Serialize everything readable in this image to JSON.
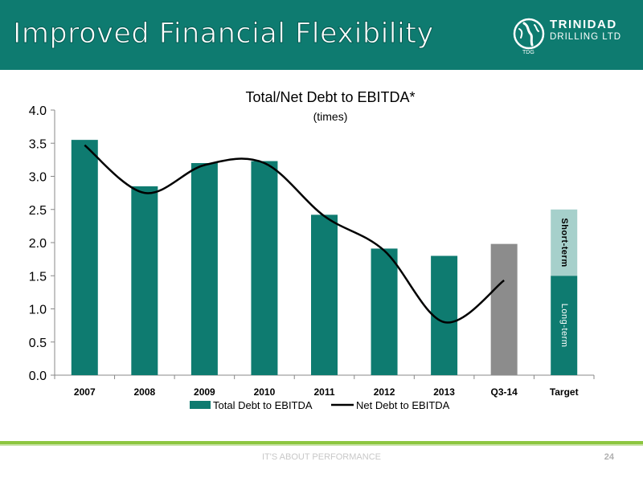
{
  "header": {
    "title": "Improved Financial Flexibility",
    "logo_line1": "TRINIDAD",
    "logo_line2": "DRILLING LTD",
    "logo_mark": "TDG"
  },
  "chart_data": {
    "type": "bar",
    "title": "Total/Net Debt to EBITDA*",
    "subtitle": "(times)",
    "categories": [
      "2007",
      "2008",
      "2009",
      "2010",
      "2011",
      "2012",
      "2013",
      "Q3-14",
      "Target"
    ],
    "ylim": [
      0,
      4.0
    ],
    "yticks": [
      "0.0",
      "0.5",
      "1.0",
      "1.5",
      "2.0",
      "2.5",
      "3.0",
      "3.5",
      "4.0"
    ],
    "grid": false,
    "legend_position": "bottom",
    "series": [
      {
        "name": "Total Debt to EBITDA",
        "type": "bar",
        "values": [
          3.55,
          2.85,
          3.2,
          3.23,
          2.42,
          1.91,
          1.8,
          1.98,
          null
        ],
        "color": "#0e7b70"
      },
      {
        "name": "Net Debt to EBITDA",
        "type": "line",
        "values": [
          3.47,
          2.75,
          3.17,
          3.2,
          2.4,
          1.88,
          0.8,
          1.43,
          null
        ],
        "color": "#000000"
      }
    ],
    "highlight": {
      "category": "Q3-14",
      "color": "#8c8c8c"
    },
    "target": {
      "category": "Target",
      "segments": [
        {
          "label": "Long-term",
          "value": 1.5,
          "color": "#0e7b70"
        },
        {
          "label": "Short-term",
          "value": 1.0,
          "color": "#a6d0cb"
        }
      ]
    }
  },
  "footer": {
    "tagline": "IT'S ABOUT PERFORMANCE",
    "page_number": "24"
  }
}
